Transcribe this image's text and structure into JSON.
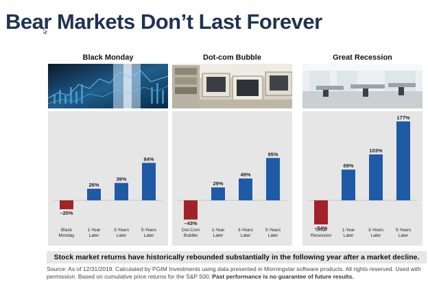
{
  "slide": {
    "title": "Bear Markets Don’t Last Forever",
    "summary": "Stock market returns have historically rebounded substantially in the following year after a market decline.",
    "source_text": "Source: As of 12/31/2019. Calculated by PGIM Investments using data presented in Morningstar software products. All rights reserved. Used with permission. Based on cumulative price returns for the S&P 500.",
    "source_bold": "Past performance is no guarantee of future results."
  },
  "colors": {
    "title": "#1f3353",
    "positive_bar": "#1f5aa6",
    "negative_bar": "#a3222a",
    "panel_background": "#e6e6e6"
  },
  "photos": [
    {
      "panel": "Black Monday",
      "icon": "stock-ticker-photo"
    },
    {
      "panel": "Dot-com Bubble",
      "icon": "old-computers-photo"
    },
    {
      "panel": "Great Recession",
      "icon": "empty-office-photo"
    }
  ],
  "chart_data": [
    {
      "type": "bar",
      "title": "Black Monday",
      "categories": [
        "Black Monday",
        "1-Year Later",
        "3-Years Later",
        "5-Years Later"
      ],
      "values": [
        -20,
        26,
        39,
        84
      ],
      "labels": [
        "–20%",
        "26%",
        "39%",
        "84%"
      ],
      "ylim": [
        -60,
        180
      ]
    },
    {
      "type": "bar",
      "title": "Dot-com Bubble",
      "categories": [
        "Dot-Com Bubble",
        "1-Year Later",
        "3-Years Later",
        "5-Years Later"
      ],
      "values": [
        -43,
        29,
        49,
        95
      ],
      "labels": [
        "–43%",
        "29%",
        "49%",
        "95%"
      ],
      "ylim": [
        -60,
        180
      ]
    },
    {
      "type": "bar",
      "title": "Great Recession",
      "categories": [
        "Great Recession",
        "1-Year Later",
        "3-Years Later",
        "5-Years Later"
      ],
      "values": [
        -54,
        69,
        103,
        177
      ],
      "labels": [
        "–54%",
        "69%",
        "103%",
        "177%"
      ],
      "ylim": [
        -60,
        180
      ]
    }
  ]
}
